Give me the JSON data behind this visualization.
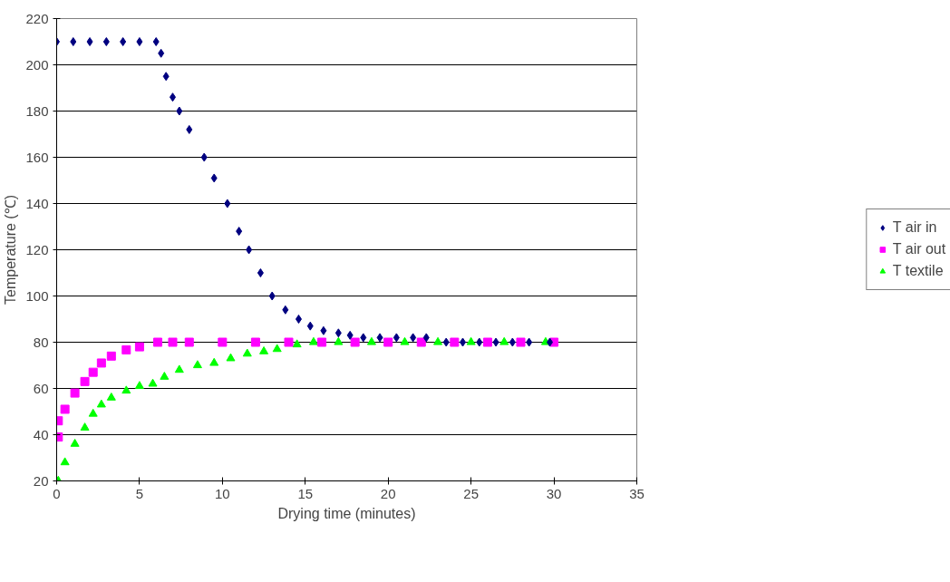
{
  "chart_data": {
    "type": "scatter",
    "xlabel": "Drying time (minutes)",
    "ylabel": "Temperature (℃)",
    "xlim": [
      0,
      35
    ],
    "xticks": [
      0,
      5,
      10,
      15,
      20,
      25,
      30,
      35
    ],
    "ylim": [
      20,
      220
    ],
    "yticks": [
      20,
      40,
      60,
      80,
      100,
      120,
      140,
      160,
      180,
      200,
      220
    ],
    "grid": "y",
    "legend": "right",
    "series": [
      {
        "name": "T air in",
        "color": "#000080",
        "marker": "diamond",
        "x": [
          0,
          1,
          2,
          3,
          4,
          5,
          6,
          6.3,
          6.6,
          7,
          7.4,
          8,
          8.9,
          9.5,
          10.3,
          11,
          11.6,
          12.3,
          13,
          13.8,
          14.6,
          15.3,
          16.1,
          17,
          17.7,
          18.5,
          19.5,
          20.5,
          21.5,
          22.3,
          23.5,
          24.5,
          25.5,
          26.5,
          27.5,
          28.5,
          29.75
        ],
        "values": [
          210,
          210,
          210,
          210,
          210,
          210,
          210,
          205,
          195,
          186,
          180,
          172,
          160,
          151,
          140,
          128,
          120,
          110,
          100,
          94,
          90,
          87,
          85,
          84,
          83,
          82,
          82,
          82,
          82,
          82,
          80,
          80,
          80,
          80,
          80,
          80,
          80
        ]
      },
      {
        "name": "T air out",
        "color": "#ff00ff",
        "marker": "square",
        "x": [
          0.1,
          0.1,
          0.5,
          1.1,
          1.7,
          2.2,
          2.7,
          3.3,
          4.2,
          5,
          6.1,
          7,
          8,
          10,
          12,
          14,
          16,
          18,
          20,
          22,
          24,
          26,
          28,
          30
        ],
        "values": [
          39,
          46,
          51,
          58,
          63,
          67,
          71,
          74,
          76.7,
          78,
          80,
          80,
          80,
          80,
          80,
          80,
          80,
          80,
          80,
          80,
          80,
          80,
          80,
          80
        ]
      },
      {
        "name": "T textile",
        "color": "#00ff00",
        "marker": "triangle",
        "x": [
          0.1,
          0.5,
          1.1,
          1.7,
          2.2,
          2.7,
          3.3,
          4.2,
          5,
          5.8,
          6.5,
          7.4,
          8.5,
          9.5,
          10.5,
          11.5,
          12.5,
          13.3,
          14.5,
          15.5,
          17,
          19,
          21,
          23,
          25,
          27,
          29.5
        ],
        "values": [
          20,
          28,
          36,
          43,
          49,
          53,
          56,
          59,
          61,
          62,
          65,
          68,
          70,
          71,
          73,
          75,
          76,
          77,
          79,
          80,
          80,
          80,
          80,
          80,
          80,
          80,
          80
        ]
      }
    ]
  }
}
